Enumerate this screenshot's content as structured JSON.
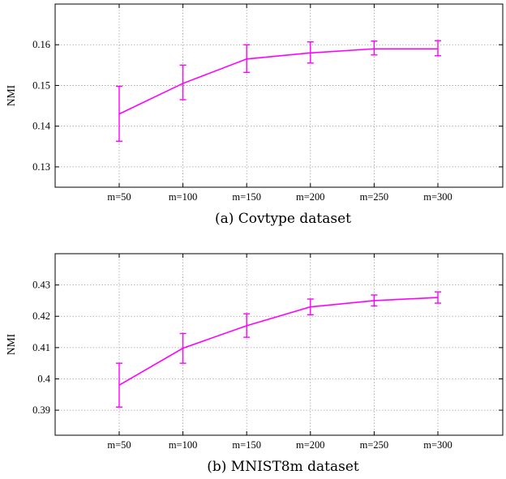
{
  "chart_data": [
    {
      "type": "line",
      "caption": "(a) Covtype dataset",
      "ylabel": "NMI",
      "categories": [
        "m=50",
        "m=100",
        "m=150",
        "m=200",
        "m=250",
        "m=300"
      ],
      "yticks": [
        "0.13",
        "0.14",
        "0.15",
        "0.16"
      ],
      "ytick_values": [
        0.13,
        0.14,
        0.15,
        0.16
      ],
      "ylim": [
        0.125,
        0.17
      ],
      "grid": true,
      "color": "#ff00ff",
      "series": [
        {
          "values": [
            0.143,
            0.1505,
            0.1565,
            0.158,
            0.159,
            0.159
          ],
          "err_low": [
            0.1363,
            0.1465,
            0.1532,
            0.1555,
            0.1575,
            0.1573
          ],
          "err_high": [
            0.1498,
            0.155,
            0.16,
            0.1607,
            0.1609,
            0.161
          ]
        }
      ]
    },
    {
      "type": "line",
      "caption": "(b) MNIST8m dataset",
      "ylabel": "NMI",
      "categories": [
        "m=50",
        "m=100",
        "m=150",
        "m=200",
        "m=250",
        "m=300"
      ],
      "yticks": [
        "0.39",
        "0.4",
        "0.41",
        "0.42",
        "0.43"
      ],
      "ytick_values": [
        0.39,
        0.4,
        0.41,
        0.42,
        0.43
      ],
      "ylim": [
        0.382,
        0.44
      ],
      "grid": true,
      "color": "#ff00ff",
      "series": [
        {
          "values": [
            0.398,
            0.4098,
            0.417,
            0.423,
            0.425,
            0.426
          ],
          "err_low": [
            0.391,
            0.405,
            0.4133,
            0.4205,
            0.4233,
            0.4242
          ],
          "err_high": [
            0.405,
            0.4145,
            0.4208,
            0.4255,
            0.4268,
            0.4278
          ]
        }
      ]
    }
  ]
}
